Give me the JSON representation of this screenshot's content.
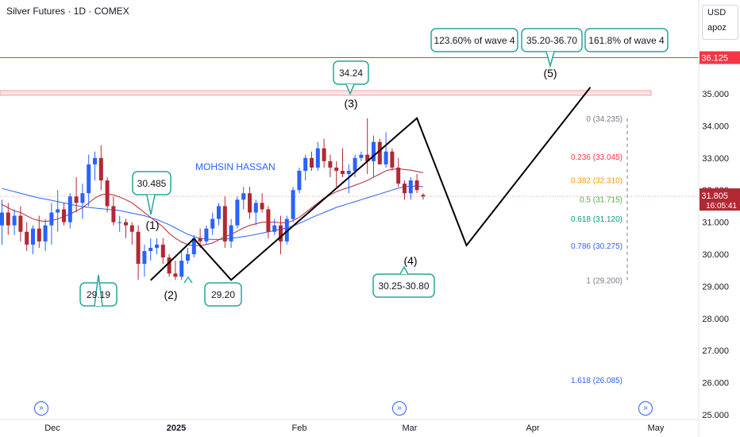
{
  "header": {
    "title": "Silver Futures · 1D · COMEX"
  },
  "currency": {
    "code": "USD",
    "extra": "apoz"
  },
  "watermark": "MOHSIN HASSAN",
  "colors": {
    "up": "#2962ff",
    "down": "#b22833",
    "ma_fast": "#b22833",
    "ma_slow": "#2962ff",
    "callout": "#26a69a",
    "resistance": "#f23645"
  },
  "chart_data": {
    "type": "candlestick",
    "ylim": [
      25.0,
      37.3
    ],
    "y_ticks": [
      "25.000",
      "26.000",
      "27.000",
      "28.000",
      "29.000",
      "30.000",
      "31.000",
      "32.000",
      "33.000",
      "34.000",
      "35.000"
    ],
    "x_ticks": [
      "Dec",
      "2025",
      "Feb",
      "Mar",
      "Apr",
      "May"
    ],
    "last_price": "31.805",
    "countdown": "16:05:41",
    "resistance_level": "36.125",
    "resistance_zone": [
      34.95,
      35.1
    ],
    "candles": [
      [
        30.9,
        31.7,
        30.3,
        31.3
      ],
      [
        31.3,
        31.6,
        30.6,
        30.9
      ],
      [
        30.9,
        31.4,
        30.6,
        31.2
      ],
      [
        31.2,
        31.5,
        30.4,
        30.7
      ],
      [
        30.7,
        31.0,
        30.1,
        30.3
      ],
      [
        30.3,
        30.9,
        30.0,
        30.8
      ],
      [
        30.8,
        31.2,
        30.2,
        30.4
      ],
      [
        30.4,
        31.1,
        30.1,
        30.9
      ],
      [
        30.9,
        31.6,
        30.3,
        31.3
      ],
      [
        31.3,
        32.0,
        30.7,
        31.4
      ],
      [
        31.4,
        31.6,
        30.9,
        31.0
      ],
      [
        31.0,
        31.9,
        30.8,
        31.8
      ],
      [
        31.8,
        32.4,
        31.3,
        31.6
      ],
      [
        31.6,
        32.2,
        31.1,
        31.9
      ],
      [
        31.9,
        33.1,
        31.5,
        32.8
      ],
      [
        32.8,
        33.2,
        32.3,
        33.0
      ],
      [
        33.0,
        33.4,
        32.0,
        32.3
      ],
      [
        32.3,
        32.4,
        31.3,
        31.5
      ],
      [
        31.5,
        31.8,
        30.9,
        31.0
      ],
      [
        31.0,
        31.2,
        30.7,
        31.0
      ],
      [
        31.0,
        31.1,
        30.5,
        30.9
      ],
      [
        30.9,
        31.0,
        30.3,
        30.7
      ],
      [
        30.7,
        30.9,
        29.2,
        29.7
      ],
      [
        29.7,
        30.3,
        29.3,
        30.1
      ],
      [
        30.1,
        30.5,
        29.8,
        30.2
      ],
      [
        30.2,
        30.5,
        30.0,
        30.3
      ],
      [
        30.3,
        30.5,
        29.7,
        29.9
      ],
      [
        29.9,
        30.0,
        29.3,
        29.4
      ],
      [
        29.4,
        29.8,
        29.2,
        29.3
      ],
      [
        29.3,
        30.1,
        29.2,
        29.8
      ],
      [
        29.8,
        30.2,
        29.7,
        30.0
      ],
      [
        30.0,
        30.6,
        29.9,
        30.5
      ],
      [
        30.5,
        30.8,
        30.2,
        30.4
      ],
      [
        30.4,
        30.9,
        30.3,
        30.8
      ],
      [
        30.8,
        31.3,
        30.6,
        31.1
      ],
      [
        31.1,
        31.6,
        30.9,
        31.5
      ],
      [
        31.5,
        31.8,
        30.2,
        30.4
      ],
      [
        30.4,
        31.1,
        30.2,
        30.9
      ],
      [
        30.9,
        31.8,
        30.8,
        31.7
      ],
      [
        31.7,
        32.1,
        31.4,
        31.9
      ],
      [
        31.9,
        32.1,
        31.1,
        31.3
      ],
      [
        31.3,
        31.7,
        30.9,
        31.6
      ],
      [
        31.6,
        31.9,
        31.3,
        31.4
      ],
      [
        31.4,
        31.5,
        30.5,
        30.7
      ],
      [
        30.7,
        31.1,
        30.6,
        30.9
      ],
      [
        30.9,
        31.2,
        30.0,
        30.4
      ],
      [
        30.4,
        31.2,
        30.3,
        31.1
      ],
      [
        31.1,
        32.1,
        31.0,
        32.0
      ],
      [
        32.0,
        32.7,
        31.9,
        32.6
      ],
      [
        32.6,
        33.1,
        32.3,
        33.0
      ],
      [
        33.0,
        33.2,
        32.6,
        32.7
      ],
      [
        32.7,
        33.5,
        32.6,
        33.3
      ],
      [
        33.3,
        33.6,
        32.7,
        32.9
      ],
      [
        32.9,
        33.1,
        32.4,
        32.7
      ],
      [
        32.7,
        32.9,
        32.1,
        32.6
      ],
      [
        32.6,
        33.3,
        32.4,
        32.5
      ],
      [
        32.5,
        32.8,
        31.9,
        32.6
      ],
      [
        32.6,
        33.1,
        32.4,
        33.0
      ],
      [
        33.0,
        33.2,
        32.9,
        33.1
      ],
      [
        33.1,
        34.24,
        32.5,
        32.9
      ],
      [
        32.9,
        33.7,
        32.4,
        33.5
      ],
      [
        33.5,
        33.6,
        32.8,
        32.8
      ],
      [
        32.8,
        33.8,
        32.7,
        33.2
      ],
      [
        33.2,
        33.3,
        32.6,
        32.7
      ],
      [
        32.7,
        33.0,
        32.1,
        32.2
      ],
      [
        32.2,
        32.3,
        31.7,
        31.9
      ],
      [
        31.9,
        32.4,
        31.7,
        32.3
      ],
      [
        32.3,
        32.5,
        31.9,
        32.0
      ],
      [
        31.85,
        31.9,
        31.7,
        31.8
      ]
    ],
    "ma_fast": [
      31.55,
      31.45,
      31.35,
      31.3,
      31.2,
      31.1,
      31.05,
      31.02,
      31.05,
      31.1,
      31.18,
      31.25,
      31.35,
      31.45,
      31.6,
      31.75,
      31.85,
      31.88,
      31.85,
      31.78,
      31.7,
      31.6,
      31.45,
      31.3,
      31.15,
      31.0,
      30.85,
      30.65,
      30.5,
      30.38,
      30.3,
      30.27,
      30.27,
      30.3,
      30.35,
      30.45,
      30.55,
      30.62,
      30.72,
      30.82,
      30.9,
      30.95,
      31.0,
      31.0,
      31.0,
      30.98,
      30.98,
      31.05,
      31.15,
      31.3,
      31.45,
      31.6,
      31.75,
      31.85,
      31.95,
      32.02,
      32.08,
      32.15,
      32.22,
      32.3,
      32.4,
      32.5,
      32.6,
      32.65,
      32.66,
      32.64,
      32.62,
      32.58,
      32.54
    ],
    "ma_slow": [
      32.05,
      32.0,
      31.95,
      31.9,
      31.85,
      31.8,
      31.75,
      31.72,
      31.68,
      31.64,
      31.6,
      31.56,
      31.52,
      31.48,
      31.46,
      31.44,
      31.42,
      31.4,
      31.38,
      31.36,
      31.32,
      31.28,
      31.24,
      31.2,
      31.14,
      31.08,
      31.0,
      30.92,
      30.82,
      30.72,
      30.62,
      30.55,
      30.5,
      30.47,
      30.46,
      30.46,
      30.47,
      30.5,
      30.52,
      30.55,
      30.58,
      30.62,
      30.66,
      30.7,
      30.74,
      30.78,
      30.82,
      30.88,
      30.96,
      31.05,
      31.14,
      31.22,
      31.3,
      31.38,
      31.46,
      31.52,
      31.58,
      31.64,
      31.7,
      31.76,
      31.82,
      31.88,
      31.94,
      32.0,
      32.06,
      32.1,
      32.12,
      32.12,
      32.1
    ],
    "wave_path": [
      [
        24,
        29.19
      ],
      [
        31,
        30.485
      ],
      [
        37,
        29.2
      ],
      [
        67,
        34.24
      ],
      [
        75,
        30.275
      ],
      [
        95,
        35.2
      ]
    ],
    "wave_labels": [
      "(1)",
      "(2)",
      "(3)",
      "(4)",
      "(5)"
    ],
    "callouts": [
      "29.19",
      "30.485",
      "29.20",
      "34.24",
      "30.25-30.80",
      "123.60% of wave 4",
      "35.20-36.70",
      "161.8% of wave 4"
    ],
    "fib_levels": [
      {
        "ratio": "0",
        "value": "34.235",
        "color": "#787b86"
      },
      {
        "ratio": "0.236",
        "value": "33.045",
        "color": "#f23645"
      },
      {
        "ratio": "0.382",
        "value": "32.310",
        "color": "#ff9800"
      },
      {
        "ratio": "0.5",
        "value": "31.715",
        "color": "#4caf50"
      },
      {
        "ratio": "0.618",
        "value": "31.120",
        "color": "#089981"
      },
      {
        "ratio": "0.786",
        "value": "30.275",
        "color": "#2962ff"
      },
      {
        "ratio": "1",
        "value": "29.200",
        "color": "#787b86"
      },
      {
        "ratio": "1.618",
        "value": "26.085",
        "color": "#2962ff"
      }
    ]
  }
}
